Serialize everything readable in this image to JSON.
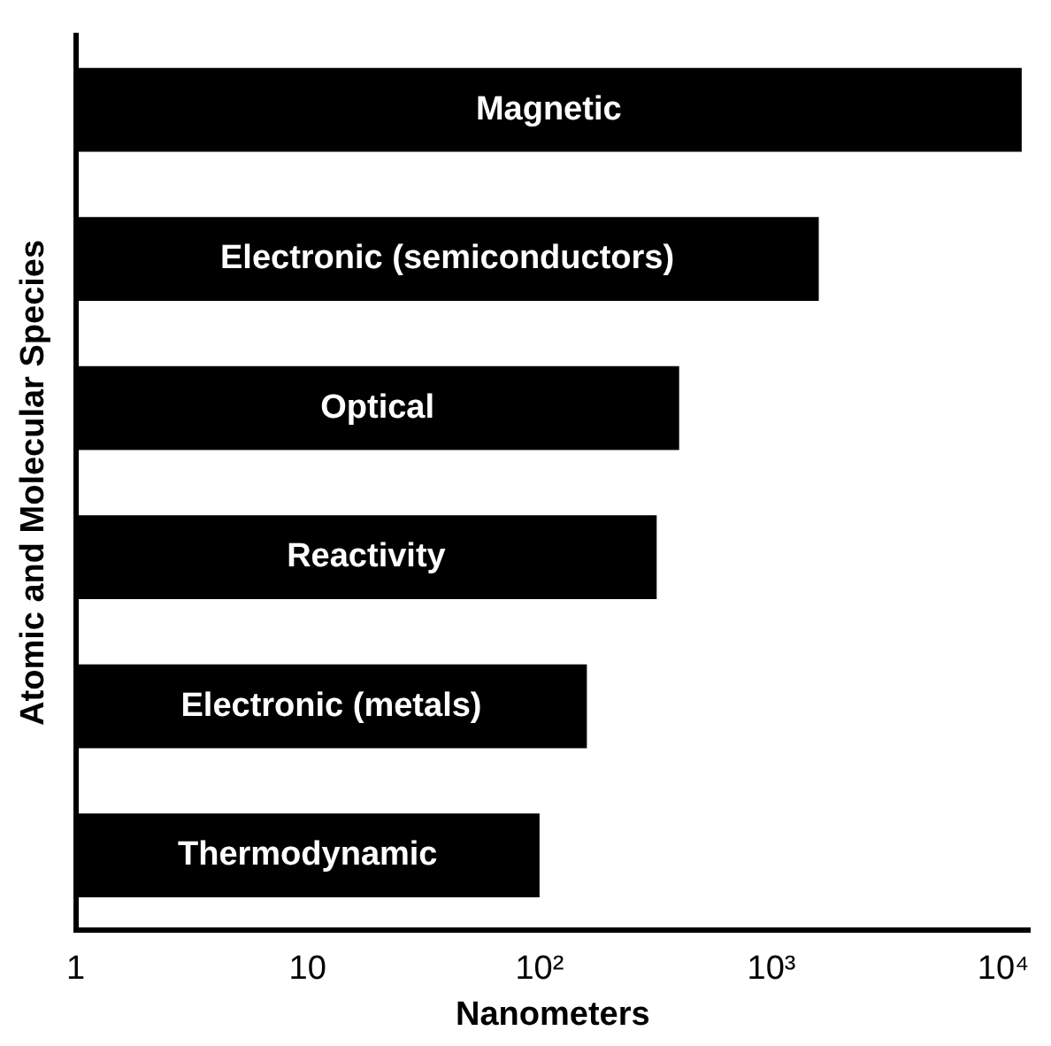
{
  "chart_data": {
    "type": "bar",
    "orientation": "horizontal",
    "log": "x",
    "xlabel": "Nanometers",
    "ylabel": "Atomic and Molecular Species",
    "categories": [
      "Magnetic",
      "Electronic (semiconductors)",
      "Optical",
      "Reactivity",
      "Electronic (metals)",
      "Thermodynamic"
    ],
    "values": [
      12000,
      1600,
      400,
      320,
      160,
      100
    ],
    "color": "#000000",
    "xlim": [
      1,
      13000
    ],
    "xticks": [
      1,
      10,
      {
        "value": 100,
        "label": "10²"
      },
      {
        "value": 1000,
        "label": "10³"
      },
      {
        "value": 10000,
        "label": "10⁴"
      }
    ],
    "grid": false,
    "legend": false
  }
}
